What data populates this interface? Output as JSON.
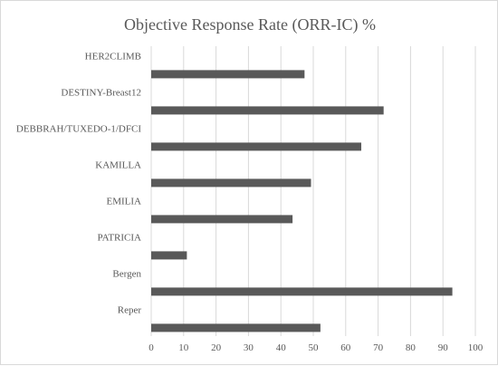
{
  "chart_data": {
    "type": "bar",
    "orientation": "horizontal",
    "title": "Objective Response Rate (ORR-IC) %",
    "categories": [
      "HER2CLIMB",
      "DESTINY-Breast12",
      "DEBBRAH/TUXEDO-1/DFCI",
      "KAMILLA",
      "EMILIA",
      "PATRICIA",
      "Bergen",
      "Reper"
    ],
    "values": [
      47.3,
      71.7,
      64.8,
      49.3,
      43.6,
      11,
      92.9,
      52.2
    ],
    "xlim": [
      0,
      100
    ],
    "xticks": [
      0,
      10,
      20,
      30,
      40,
      50,
      60,
      70,
      80,
      90,
      100
    ],
    "grid": true,
    "legend": "none",
    "bar_color": "#595959",
    "grid_color": "#d9d9d9"
  }
}
